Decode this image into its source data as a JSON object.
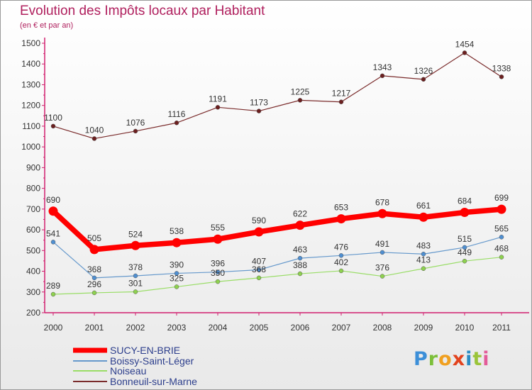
{
  "title": "Evolution des Impôts locaux par Habitant",
  "subtitle": "(en € et par an)",
  "logo": [
    "P",
    "r",
    "o",
    "x",
    "i",
    "t",
    "i"
  ],
  "chart_data": {
    "type": "line",
    "title": "Evolution des Impôts locaux par Habitant",
    "subtitle": "(en € et par an)",
    "xlabel": "",
    "ylabel": "",
    "x": [
      "2000",
      "2001",
      "2002",
      "2003",
      "2004",
      "2005",
      "2006",
      "2007",
      "2008",
      "2009",
      "2010",
      "2011"
    ],
    "ylim": [
      200,
      1500
    ],
    "yticks": [
      200,
      300,
      400,
      500,
      600,
      700,
      800,
      900,
      1000,
      1100,
      1200,
      1300,
      1400,
      1500
    ],
    "grid": false,
    "legend_position": "bottom-left",
    "series": [
      {
        "name": "SUCY-EN-BRIE",
        "color": "#ff0000",
        "values": [
          690,
          505,
          524,
          538,
          555,
          590,
          622,
          653,
          678,
          661,
          684,
          699
        ]
      },
      {
        "name": "Boissy-Saint-Léger",
        "color": "#6699cc",
        "values": [
          541,
          368,
          378,
          390,
          396,
          407,
          463,
          476,
          491,
          483,
          515,
          565
        ]
      },
      {
        "name": "Noiseau",
        "color": "#99dd66",
        "values": [
          289,
          296,
          301,
          325,
          350,
          368,
          388,
          402,
          376,
          413,
          449,
          468
        ]
      },
      {
        "name": "Bonneuil-sur-Marne",
        "color": "#7a2b2b",
        "values": [
          1100,
          1040,
          1076,
          1116,
          1191,
          1173,
          1225,
          1217,
          1343,
          1326,
          1454,
          1338
        ]
      }
    ]
  }
}
